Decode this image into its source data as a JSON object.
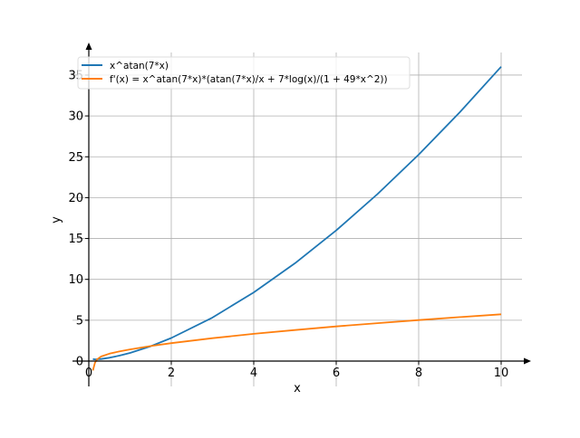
{
  "chart_data": {
    "type": "line",
    "title": "",
    "xlabel": "x",
    "ylabel": "y",
    "xlim": [
      -0.4,
      10.5
    ],
    "ylim": [
      -3,
      38
    ],
    "grid": true,
    "legend_position": "top-left",
    "xticks": [
      0,
      2,
      4,
      6,
      8,
      10
    ],
    "xtick_labels": [
      "0",
      "2",
      "4",
      "6",
      "8",
      "10"
    ],
    "yticks": [
      0,
      5,
      10,
      15,
      20,
      25,
      30,
      35
    ],
    "ytick_labels": [
      "0",
      "5",
      "10",
      "15",
      "20",
      "25",
      "30",
      "35"
    ],
    "series": [
      {
        "name": "x^atan(7*x)",
        "color": "#1f77b4",
        "x": [
          0.1,
          0.15,
          0.2,
          0.3,
          0.5,
          0.75,
          1,
          1.5,
          2,
          3,
          4,
          5,
          6,
          7,
          8,
          9,
          10
        ],
        "y": [
          0.245,
          0.215,
          0.217,
          0.258,
          0.408,
          0.672,
          1.0,
          1.819,
          2.828,
          5.33,
          8.4,
          11.97,
          15.99,
          20.43,
          25.26,
          30.46,
          36.02
        ]
      },
      {
        "name": "f'(x) = x^atan(7*x)*(atan(7*x)/x + 7*log(x)/(1 + 49*x^2))",
        "color": "#ff7f0e",
        "x": [
          0.1,
          0.15,
          0.2,
          0.3,
          0.5,
          0.75,
          1,
          1.5,
          2,
          3,
          4,
          5,
          6,
          7,
          8,
          9,
          10
        ],
        "y": [
          -1.15,
          -0.197,
          0.205,
          0.566,
          0.905,
          1.191,
          1.429,
          1.836,
          2.19,
          2.8,
          3.33,
          3.8,
          4.24,
          4.64,
          5.02,
          5.38,
          5.73
        ]
      }
    ]
  }
}
